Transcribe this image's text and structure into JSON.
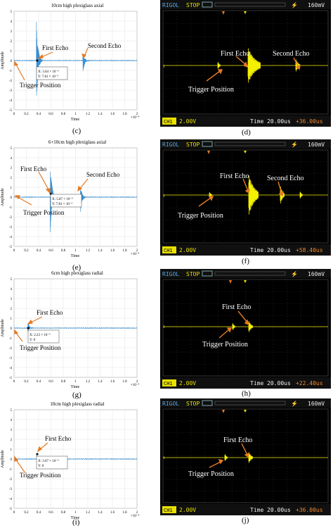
{
  "common": {
    "amp_label": "Amplitude",
    "time_label": "Time",
    "x_exp": "×10⁻⁴",
    "wave_color": "#3b8fd0",
    "scope_trace_color": "#f4f000",
    "annotation_color": "#e67a22",
    "scope_bg": "#000000"
  },
  "matlab_plots": [
    {
      "panel": "(c)",
      "title": "10cm high plexiglass axial",
      "yticks": [
        "5",
        "4",
        "3",
        "2",
        "1",
        "0",
        "-1",
        "-2",
        "-3",
        "-4",
        "-5"
      ],
      "xticks": [
        "0",
        "0.2",
        "0.4",
        "0.6",
        "0.8",
        "1",
        "1.2",
        "1.4",
        "1.6",
        "1.8",
        "2"
      ],
      "annotations": [
        "First Echo",
        "Second Echo",
        "Trigger Position"
      ],
      "datatip": [
        "X: 3.64 × 10⁻⁵",
        "Y: 7.81 × 10⁻³"
      ]
    },
    {
      "panel": "(e)",
      "title": "6+10cm high plexiglass axial",
      "yticks": [
        "5",
        "4",
        "3",
        "2",
        "1",
        "0",
        "-1",
        "-2",
        "-3",
        "-4",
        "-5"
      ],
      "xticks": [
        "0",
        "0.2",
        "0.4",
        "0.6",
        "0.8",
        "1",
        "1.2",
        "1.4",
        "1.6",
        "1.8",
        "2"
      ],
      "annotations": [
        "First Echo",
        "Second Echo",
        "Trigger Position"
      ],
      "datatip": [
        "X: 5.87 × 10⁻⁵",
        "Y: 7.81 × 10⁻³"
      ]
    },
    {
      "panel": "(g)",
      "title": "6cm high plexiglass radial",
      "yticks": [
        "5",
        "4",
        "3",
        "2",
        "1",
        "0",
        "-1",
        "-2",
        "-3",
        "-4",
        "-5"
      ],
      "xticks": [
        "0",
        "0.2",
        "0.4",
        "0.6",
        "0.8",
        "1",
        "1.2",
        "1.4",
        "1.6",
        "1.8",
        "2"
      ],
      "annotations": [
        "First Echo",
        "Trigger Position"
      ],
      "datatip": [
        "X: 2.23 × 10⁻⁵",
        "Y: 0"
      ]
    },
    {
      "panel": "(i)",
      "title": "10cm high plexiglass radial",
      "yticks": [
        "5",
        "4",
        "3",
        "2",
        "1",
        "0",
        "-1",
        "-2",
        "-3",
        "-4",
        "-5"
      ],
      "xticks": [
        "0",
        "0.2",
        "0.4",
        "0.6",
        "0.8",
        "1",
        "1.2",
        "1.4",
        "1.6",
        "1.8",
        "2"
      ],
      "annotations": [
        "First Echo",
        "Trigger Position"
      ],
      "datatip": [
        "X: 3.67 × 10⁻⁵",
        "Y: 0"
      ]
    }
  ],
  "scope_plots": [
    {
      "panel": "(d)",
      "brand": "RIGOL",
      "mode": "STOP",
      "ch_label": "CH1",
      "ch_scale": "2.00V",
      "timebase": "Time 20.00us",
      "trig_level": "160mV",
      "offset": "+36.00us",
      "annotations": [
        "First Echo",
        "Second Echo",
        "Trigger Position"
      ]
    },
    {
      "panel": "(f)",
      "brand": "RIGOL",
      "mode": "STOP",
      "ch_label": "CH1",
      "ch_scale": "2.00V",
      "timebase": "Time 20.00us",
      "trig_level": "160mV",
      "offset": "+58.40us",
      "annotations": [
        "First Echo",
        "Second Echo",
        "Trigger Position"
      ]
    },
    {
      "panel": "(h)",
      "brand": "RIGOL",
      "mode": "STOP",
      "ch_label": "CH1",
      "ch_scale": "2.00V",
      "timebase": "Time 20.00us",
      "trig_level": "160mV",
      "offset": "+22.40us",
      "annotations": [
        "First Echo",
        "Trigger Position"
      ]
    },
    {
      "panel": "(j)",
      "brand": "RIGOL",
      "mode": "STOP",
      "ch_label": "CH1",
      "ch_scale": "2.00V",
      "timebase": "Time 20.00us",
      "trig_level": "160mV",
      "offset": "+36.00us",
      "annotations": [
        "First Echo",
        "Trigger Position"
      ]
    }
  ],
  "chart_data": [
    {
      "type": "line",
      "title": "10cm high plexiglass axial",
      "xlabel": "Time",
      "ylabel": "Amplitude",
      "xlim": [
        0,
        0.0002
      ],
      "ylim": [
        -5,
        5
      ],
      "events": [
        {
          "name": "Trigger Position",
          "x": 0.0,
          "amp": 0.05
        },
        {
          "name": "First Echo",
          "x": 3.64e-05,
          "amp_max": 4.5,
          "amp_min": -4.4
        },
        {
          "name": "Second Echo",
          "x": 0.000112,
          "amp_max": 0.8,
          "amp_min": -1.3
        }
      ]
    },
    {
      "type": "line",
      "title": "6+10cm high plexiglass axial",
      "xlabel": "Time",
      "ylabel": "Amplitude",
      "xlim": [
        0,
        0.0002
      ],
      "ylim": [
        -5,
        5
      ],
      "events": [
        {
          "name": "Trigger Position",
          "x": 0.0,
          "amp": 0.05
        },
        {
          "name": "First Echo",
          "x": 5.87e-05,
          "amp_max": 4.6,
          "amp_min": -3.9
        },
        {
          "name": "Second Echo",
          "x": 0.000108,
          "amp_max": 1.2,
          "amp_min": -1.6
        }
      ]
    },
    {
      "type": "line",
      "title": "6cm high plexiglass radial",
      "xlabel": "Time",
      "ylabel": "Amplitude",
      "xlim": [
        0,
        0.0002
      ],
      "ylim": [
        -5,
        5
      ],
      "events": [
        {
          "name": "Trigger Position",
          "x": 0.0,
          "amp": 0.05
        },
        {
          "name": "First Echo",
          "x": 2.23e-05,
          "amp_max": 0.7,
          "amp_min": -0.4
        }
      ]
    },
    {
      "type": "line",
      "title": "10cm high plexiglass radial",
      "xlabel": "Time",
      "ylabel": "Amplitude",
      "xlim": [
        0,
        0.0002
      ],
      "ylim": [
        -5,
        5
      ],
      "events": [
        {
          "name": "Trigger Position",
          "x": 0.0,
          "amp": 0.05
        },
        {
          "name": "First Echo",
          "x": 3.67e-05,
          "amp_max": 0.6,
          "amp_min": -0.4
        }
      ]
    }
  ]
}
